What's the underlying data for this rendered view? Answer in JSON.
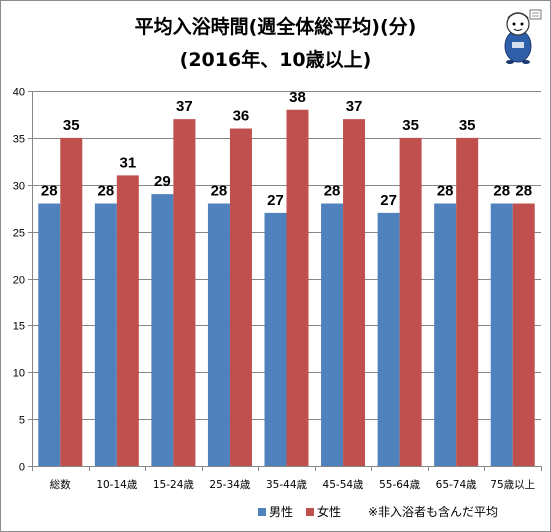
{
  "chart_data": {
    "type": "bar",
    "title": "平均入浴時間(週全体総平均)(分)",
    "subtitle": "(2016年、10歳以上)",
    "categories": [
      "総数",
      "10-14歳",
      "15-24歳",
      "25-34歳",
      "35-44歳",
      "45-54歳",
      "55-64歳",
      "65-74歳",
      "75歳以上"
    ],
    "series": [
      {
        "name": "男性",
        "color": "#4f81bd",
        "values": [
          28,
          28,
          29,
          28,
          27,
          28,
          27,
          28,
          28
        ]
      },
      {
        "name": "女性",
        "color": "#c0504d",
        "values": [
          35,
          31,
          37,
          36,
          38,
          37,
          35,
          35,
          28
        ]
      }
    ],
    "ylim": [
      0,
      40
    ],
    "yticks": [
      0,
      5,
      10,
      15,
      20,
      25,
      30,
      35,
      40
    ],
    "grid": true,
    "legend_position": "bottom",
    "note": "※非入浴者も含んだ平均"
  }
}
